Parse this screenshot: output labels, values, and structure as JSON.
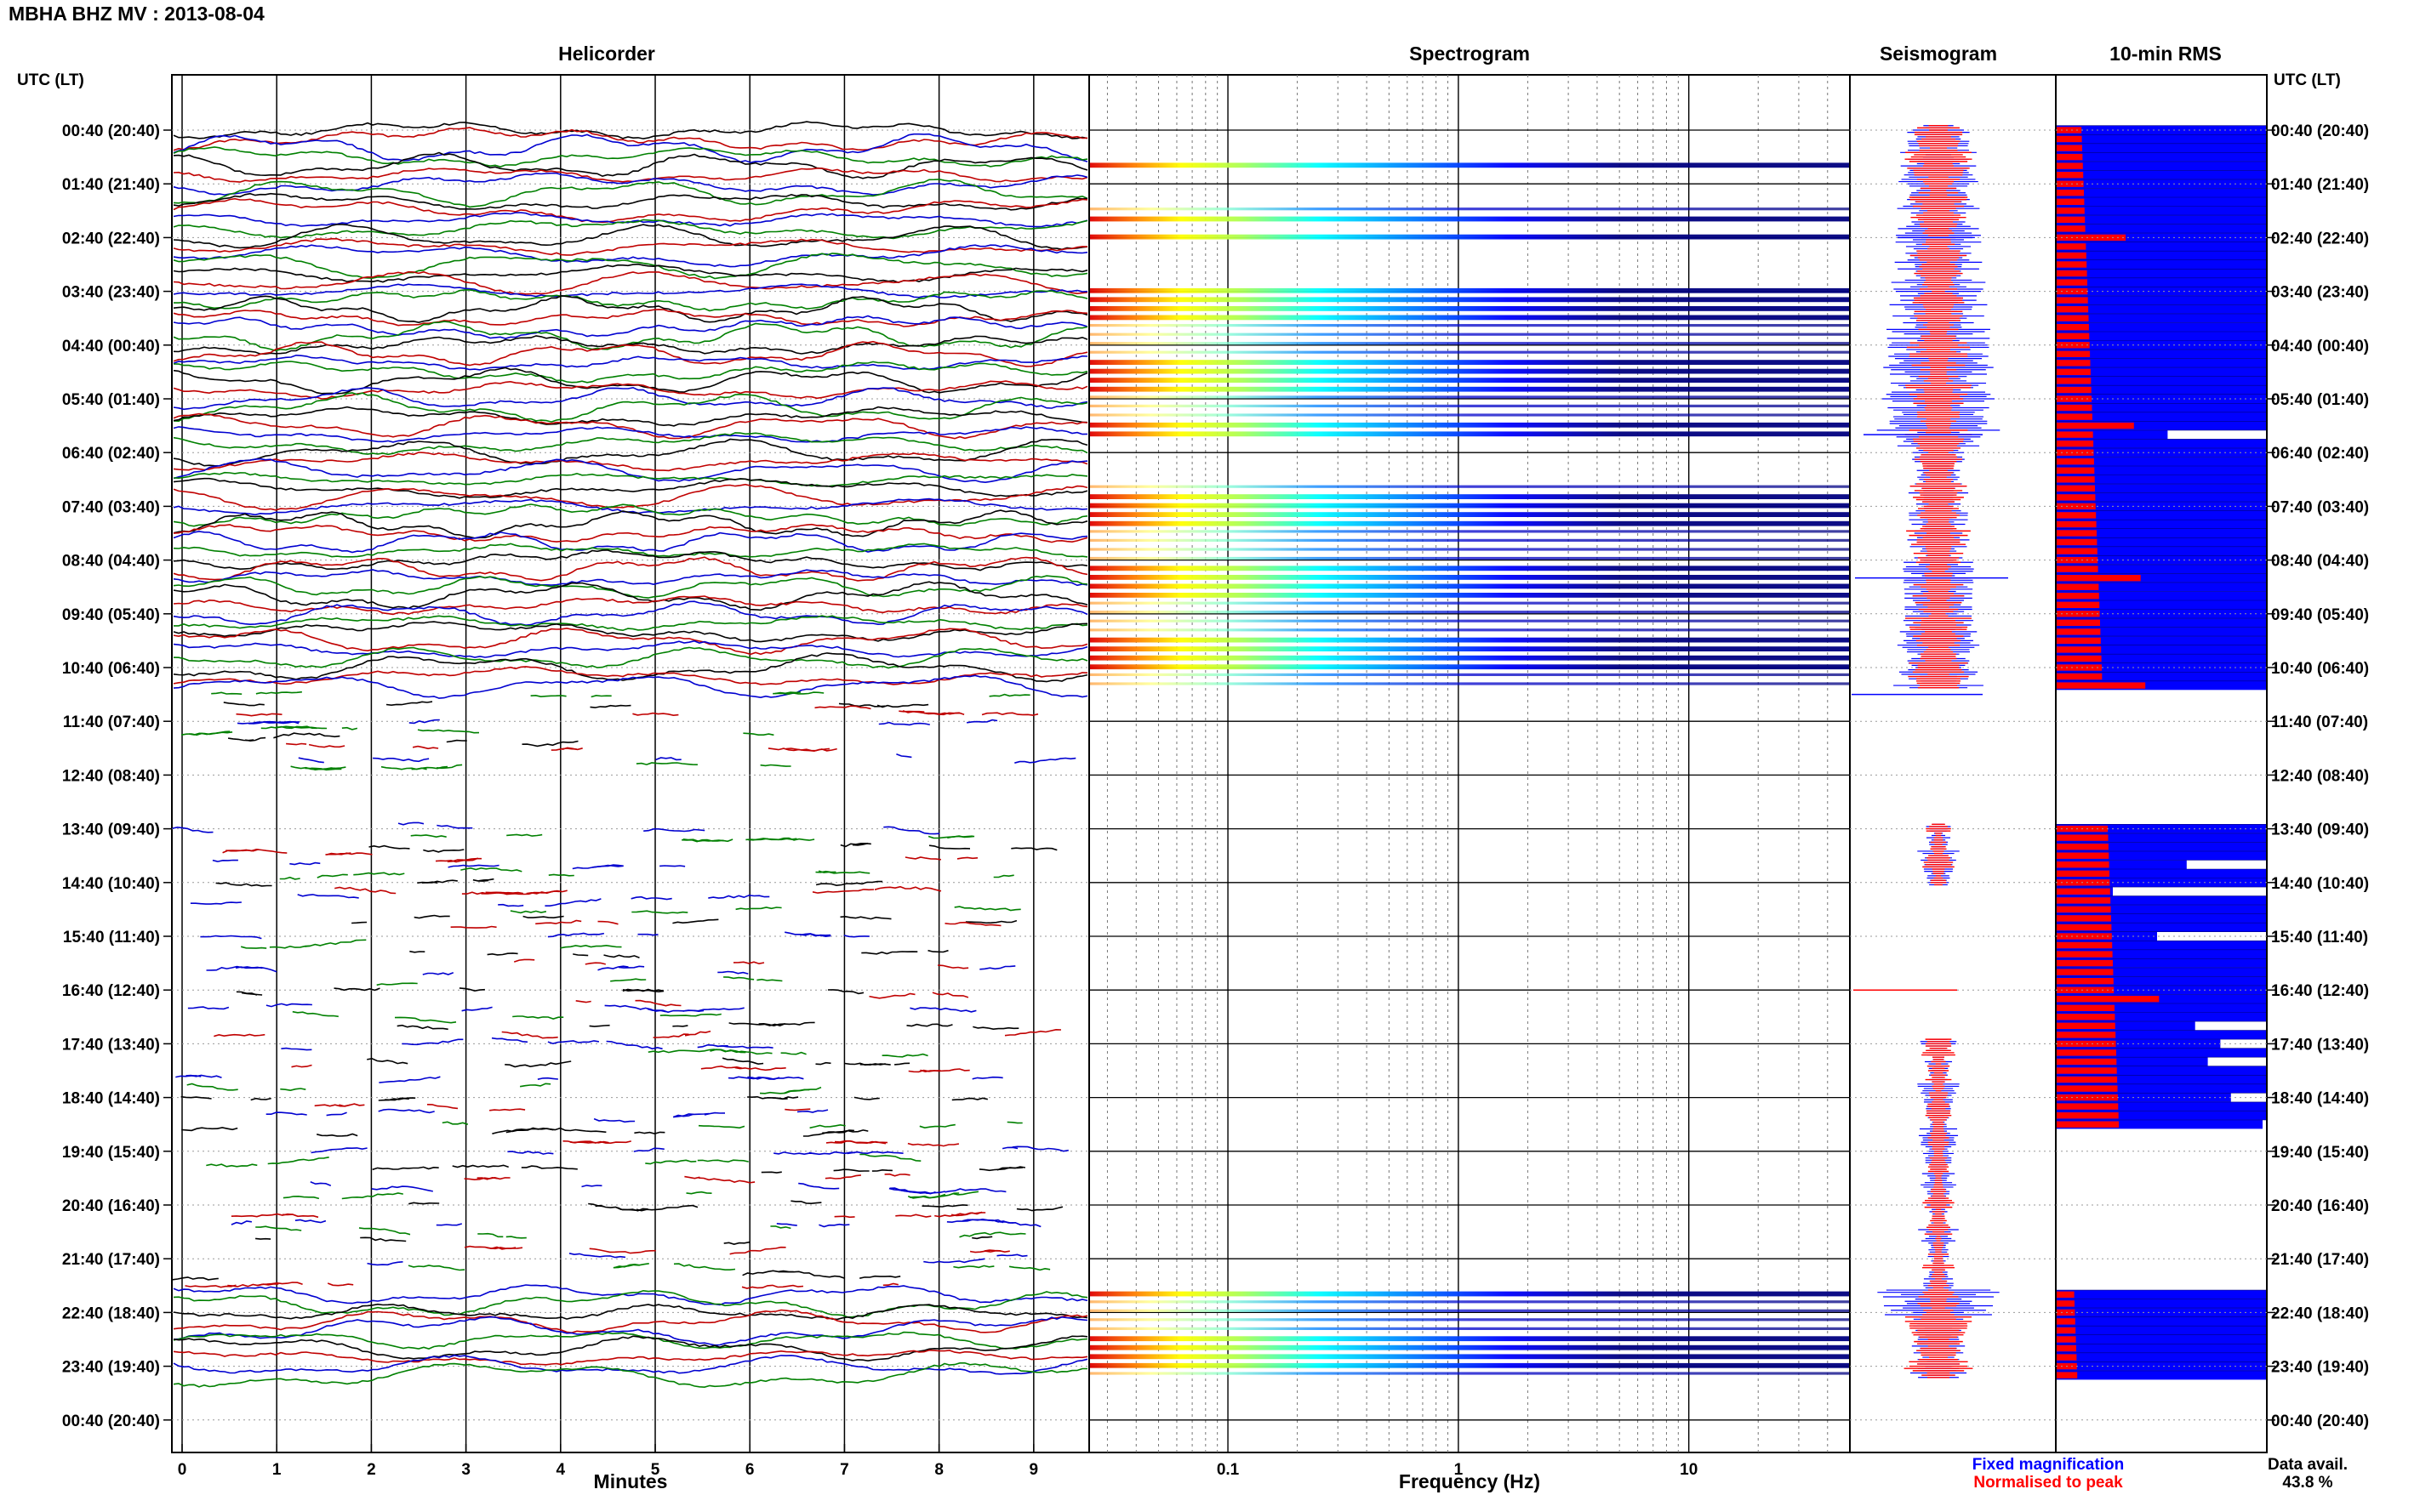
{
  "header": {
    "title": "MBHA BHZ MV : 2013-08-04",
    "left_axis_label": "UTC (LT)",
    "right_axis_label": "UTC (LT)"
  },
  "panels": {
    "helicorder": "Helicorder",
    "spectrogram": "Spectrogram",
    "seismogram": "Seismogram",
    "rms": "10-min RMS"
  },
  "legend": {
    "fixed": "Fixed magnification",
    "normalised": "Normalised to peak",
    "data_avail_label": "Data avail.",
    "data_avail_value": "43.8 %"
  },
  "colors": {
    "trace_cycle": [
      "#000000",
      "#c00000",
      "#0000d0",
      "#008000"
    ],
    "rms_fixed": "#0000ff",
    "rms_norm": "#ff0000",
    "legend_fixed": "#0000ff",
    "legend_norm": "#ff0000"
  },
  "chart_data": [
    {
      "type": "line",
      "title": "Helicorder",
      "xlabel": "Minutes",
      "x_ticks": [
        "0",
        "1",
        "2",
        "3",
        "4",
        "5",
        "6",
        "7",
        "8",
        "9"
      ],
      "xlim": [
        0,
        10
      ],
      "y_ticks": [
        "00:40 (20:40)",
        "01:40 (21:40)",
        "02:40 (22:40)",
        "03:40 (23:40)",
        "04:40 (00:40)",
        "05:40 (01:40)",
        "06:40 (02:40)",
        "07:40 (03:40)",
        "08:40 (04:40)",
        "09:40 (05:40)",
        "10:40 (06:40)",
        "11:40 (07:40)",
        "12:40 (08:40)",
        "13:40 (09:40)",
        "14:40 (10:40)",
        "15:40 (11:40)",
        "16:40 (12:40)",
        "17:40 (13:40)",
        "18:40 (14:40)",
        "19:40 (15:40)",
        "20:40 (16:40)",
        "21:40 (17:40)",
        "22:40 (18:40)",
        "23:40 (19:40)",
        "00:40 (20:40)"
      ],
      "rows_per_hour": 6,
      "continuous_rows": [
        [
          0,
          62
        ],
        [
          130,
          139
        ]
      ],
      "sparse_rows": [
        [
          63,
          71
        ],
        [
          78,
          129
        ]
      ]
    },
    {
      "type": "heatmap",
      "title": "Spectrogram",
      "xlabel": "Frequency (Hz)",
      "x_scale": "log",
      "xlim": [
        0.025,
        50
      ],
      "x_ticks": [
        "0.1",
        "1",
        "10"
      ],
      "x_tick_values": [
        0.1,
        1,
        10
      ],
      "colormap": "jet",
      "active_blocks": [
        [
          4,
          4
        ],
        [
          9,
          10
        ],
        [
          12,
          12
        ],
        [
          18,
          34
        ],
        [
          40,
          62
        ],
        [
          130,
          139
        ]
      ]
    },
    {
      "type": "line",
      "title": "Seismogram",
      "series": [
        {
          "name": "Fixed magnification",
          "color": "#0000ff"
        },
        {
          "name": "Normalised to peak",
          "color": "#ff0000"
        }
      ]
    },
    {
      "type": "bar",
      "title": "10-min RMS",
      "data_available": "43.8 %",
      "gap_rows": [
        63,
        64,
        65,
        66,
        67,
        68,
        69,
        70,
        71,
        72,
        73,
        74,
        75,
        76,
        77,
        112,
        113,
        114,
        115,
        116,
        117,
        118,
        119,
        120,
        121,
        122,
        123,
        124,
        125,
        126,
        127,
        128,
        129
      ],
      "partial_rows": [
        {
          "row": 34,
          "fraction": 0.53
        },
        {
          "row": 82,
          "fraction": 0.62
        },
        {
          "row": 85,
          "fraction": 0.27
        },
        {
          "row": 90,
          "fraction": 0.48
        },
        {
          "row": 100,
          "fraction": 0.66
        },
        {
          "row": 102,
          "fraction": 0.78
        },
        {
          "row": 104,
          "fraction": 0.72
        },
        {
          "row": 108,
          "fraction": 0.83
        },
        {
          "row": 111,
          "fraction": 0.98
        }
      ]
    }
  ]
}
